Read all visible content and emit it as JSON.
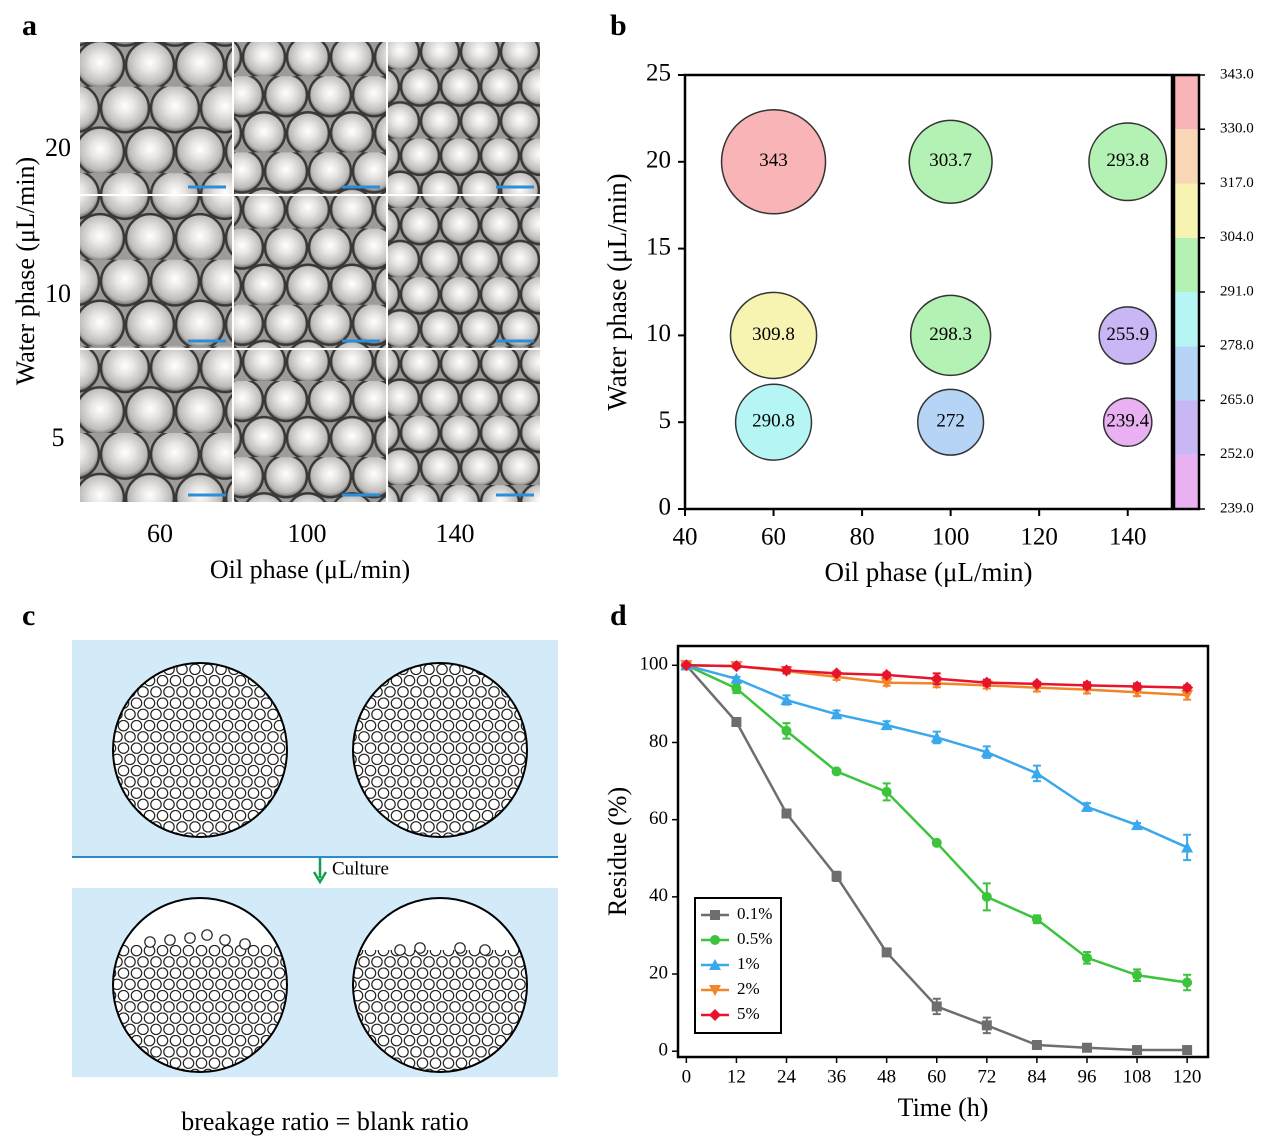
{
  "image_panel": {
    "panel_label": "a",
    "xlabel": "Oil phase (μL/min)",
    "ylabel": "Water phase (μL/min)",
    "x_categories": [
      "60",
      "100",
      "140"
    ],
    "y_categories": [
      "20",
      "10",
      "5"
    ]
  },
  "chart_data": [
    {
      "type": "bubble",
      "panel_label": "b",
      "xlabel": "Oil phase (μL/min)",
      "ylabel": "Water phase (μL/min)",
      "x": [
        60,
        100,
        140,
        60,
        100,
        140,
        60,
        100,
        140
      ],
      "y": [
        20,
        20,
        20,
        10,
        10,
        10,
        5,
        5,
        5
      ],
      "values": [
        343,
        303.7,
        293.8,
        309.8,
        298.3,
        255.9,
        290.8,
        272,
        239.4
      ],
      "xlim": [
        40,
        150
      ],
      "xticks": [
        40,
        60,
        80,
        100,
        120,
        140
      ],
      "ylim": [
        0,
        25
      ],
      "yticks": [
        0,
        5,
        10,
        15,
        20,
        25
      ],
      "colorbar": {
        "lim": [
          239,
          343
        ],
        "ticks": [
          {
            "value": 239,
            "label": "239.0"
          },
          {
            "value": 252,
            "label": "252.0"
          },
          {
            "value": 265,
            "label": "265.0"
          },
          {
            "value": 278,
            "label": "278.0"
          },
          {
            "value": 291,
            "label": "291.0"
          },
          {
            "value": 304,
            "label": "304.0"
          },
          {
            "value": 317,
            "label": "317.0"
          },
          {
            "value": 330,
            "label": "330.0"
          },
          {
            "value": 343,
            "label": "343.0"
          }
        ],
        "colors": [
          "#e9b0f2",
          "#c9b6f4",
          "#b6d4f5",
          "#b5f6f4",
          "#b4f1b4",
          "#f7f4b2",
          "#f8d6b6",
          "#f8b4b6"
        ]
      }
    },
    {
      "type": "line",
      "panel_label": "d",
      "xlabel": "Time (h)",
      "ylabel": "Residue (%)",
      "x": [
        0,
        12,
        24,
        36,
        48,
        60,
        72,
        84,
        96,
        108,
        120
      ],
      "xlim": [
        -2,
        125
      ],
      "xticks": [
        0,
        12,
        24,
        36,
        48,
        60,
        72,
        84,
        96,
        108,
        120
      ],
      "ylim": [
        -1.5,
        105
      ],
      "yticks": [
        0,
        20,
        40,
        60,
        80,
        100
      ],
      "legend": "lower left",
      "series": [
        {
          "name": "0.1%",
          "color": "#6e6e6e",
          "marker": "square",
          "values": [
            100,
            85.3,
            61.6,
            45.3,
            25.6,
            11.6,
            6.7,
            1.6,
            0.9,
            0.3,
            0.3
          ],
          "errors": [
            0,
            1,
            0.5,
            1.2,
            0.5,
            2,
            2,
            1,
            0.8,
            0.3,
            0.3
          ]
        },
        {
          "name": "0.5%",
          "color": "#3cc43c",
          "marker": "circle",
          "values": [
            100,
            94,
            83,
            72.5,
            67.2,
            54,
            40,
            34.2,
            24.2,
            19.7,
            17.8
          ],
          "errors": [
            0,
            1.2,
            2,
            0.5,
            2.2,
            0.5,
            3.5,
            1,
            1.5,
            1.5,
            2
          ]
        },
        {
          "name": "1%",
          "color": "#3aa8ec",
          "marker": "triangle-up",
          "values": [
            100,
            96.5,
            91,
            87.3,
            84.5,
            81.3,
            77.5,
            72,
            63.3,
            58.6,
            52.8
          ],
          "errors": [
            0,
            0.5,
            1.2,
            1,
            1,
            1.5,
            1.5,
            2,
            1,
            0.5,
            3.3
          ]
        },
        {
          "name": "2%",
          "color": "#f2842a",
          "marker": "triangle-down",
          "values": [
            100,
            99.8,
            98.5,
            97,
            95.5,
            95.3,
            94.8,
            94.2,
            93.7,
            93,
            92.3
          ],
          "errors": [
            0,
            0.5,
            0.6,
            0.8,
            0.8,
            1,
            0.8,
            1,
            1,
            1,
            1.2
          ]
        },
        {
          "name": "5%",
          "color": "#e8142c",
          "marker": "diamond",
          "values": [
            100,
            99.8,
            98.7,
            97.9,
            97.5,
            96.5,
            95.5,
            95.2,
            94.8,
            94.5,
            94.2
          ],
          "errors": [
            0,
            0.5,
            0.8,
            0.5,
            0.6,
            1.4,
            0.8,
            0.5,
            0.8,
            0.8,
            0.6
          ]
        }
      ]
    }
  ],
  "diagram": {
    "panel_label": "c",
    "arrow_label": "Culture",
    "caption": "breakage ratio = blank ratio"
  }
}
